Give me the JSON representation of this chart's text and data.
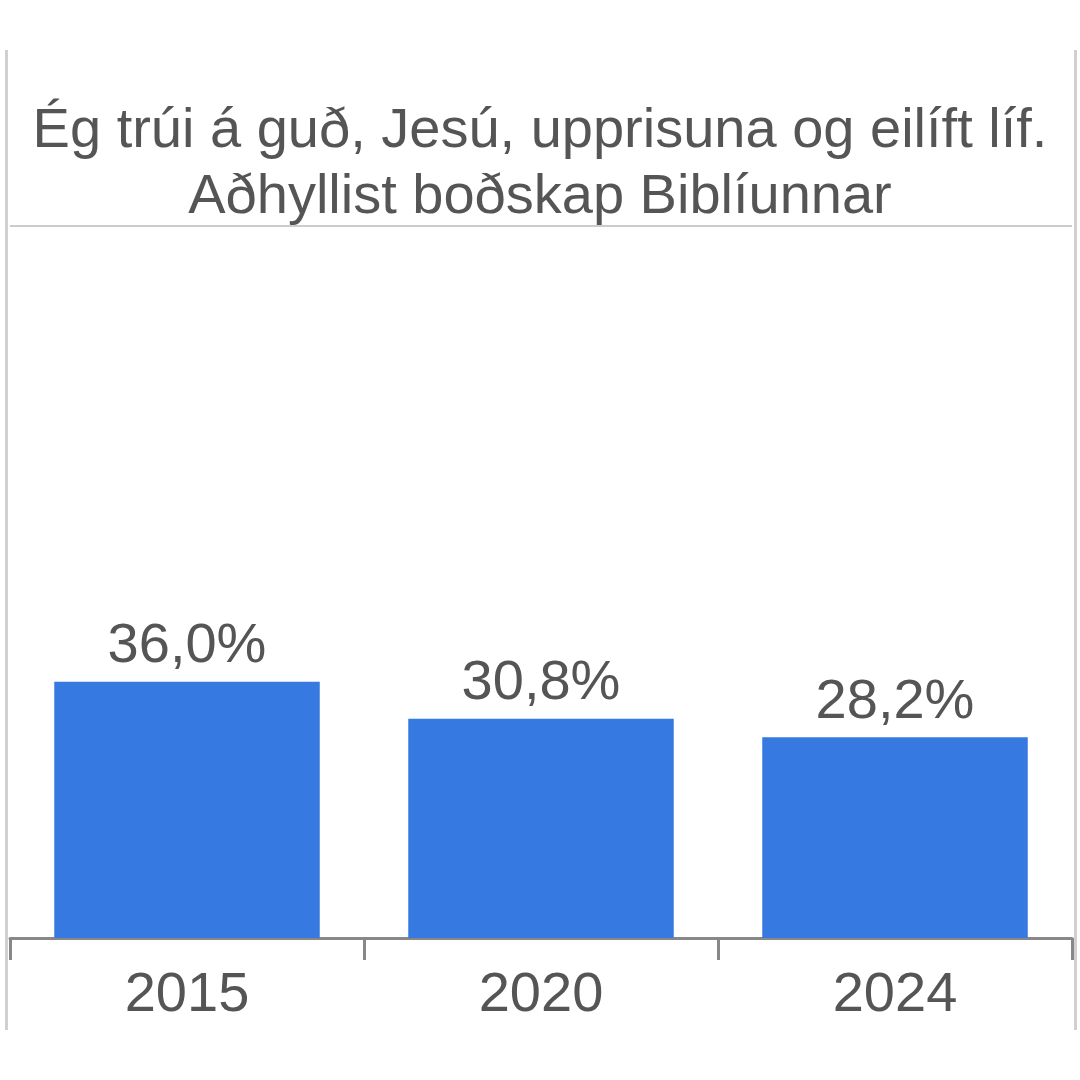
{
  "chart_data": {
    "type": "bar",
    "title": "Ég trúi á guð, Jesú, upprisuna og eilíft líf. Aðhyllist boðskap Biblíunnar",
    "categories": [
      "2015",
      "2020",
      "2024"
    ],
    "values": [
      36.0,
      30.8,
      28.2
    ],
    "value_labels": [
      "36,0%",
      "30,8%",
      "28,2%"
    ],
    "color": "#3679e0",
    "ylim": [
      0,
      100
    ],
    "ref_lines": [
      {
        "axis": "y",
        "value": 100,
        "color": "#cccccc"
      }
    ],
    "tick_labels": "x"
  }
}
